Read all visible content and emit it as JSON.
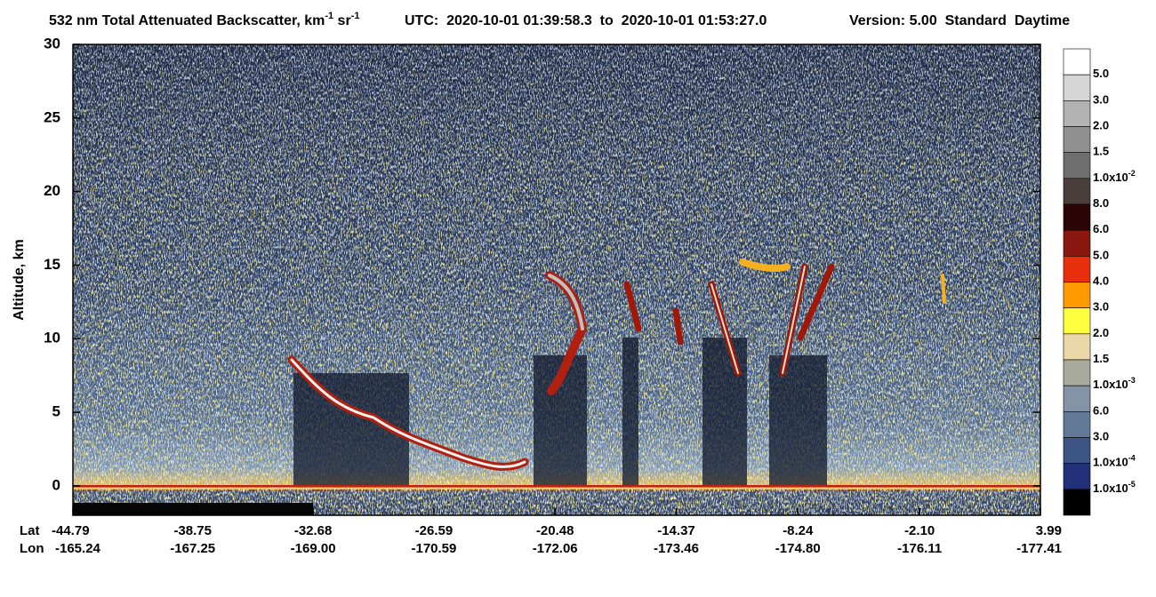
{
  "chart_data": {
    "type": "curtain",
    "title": {
      "quantity": "532 nm Total Attenuated Backscatter, km",
      "unit_exp_1": "-1",
      "unit_2": " sr",
      "unit_exp_2": "-1",
      "utc": "UTC:  2020-10-01 01:39:58.3  to  2020-10-01 01:53:27.0",
      "version": "Version: 5.00  Standard  Daytime"
    },
    "y_label": "Altitude, km",
    "ylim": [
      -2,
      30
    ],
    "yticks": [
      0,
      5,
      10,
      15,
      20,
      25,
      30
    ],
    "x_row_labels": [
      "Lat",
      "Lon"
    ],
    "xlim": [
      -44.79,
      3.99
    ],
    "xticks": [
      -44.79,
      -38.75,
      -32.68,
      -26.59,
      -20.48,
      -14.37,
      -8.24,
      {
        "value": -2.1,
        "label": "-2.10"
      },
      3.99
    ],
    "lon_labels": [
      "-165.24",
      "-167.25",
      "-169.00",
      "-170.59",
      "-172.06",
      "-173.46",
      "-174.80",
      "-176.11",
      "-177.41"
    ],
    "colorbar": {
      "colors": [
        "#ffffff",
        "#d6d6d6",
        "#b2b2b2",
        "#909090",
        "#6e6e6e",
        "#4a3e3c",
        "#2c0606",
        "#8a1810",
        "#e8300c",
        "#ff9a00",
        "#ffff40",
        "#ead8a8",
        "#a8aa9c",
        "#8494a6",
        "#627a98",
        "#3c5484",
        "#22307a",
        "#000000"
      ],
      "labels": [
        {
          "label": "5.0"
        },
        {
          "label": "3.0"
        },
        {
          "label": "2.0"
        },
        {
          "label": "1.5"
        },
        {
          "label": "1.0x10",
          "sup": "-2"
        },
        {
          "label": "8.0"
        },
        {
          "label": "6.0"
        },
        {
          "label": "5.0"
        },
        {
          "label": "4.0"
        },
        {
          "label": "3.0"
        },
        {
          "label": "2.0"
        },
        {
          "label": "1.5"
        },
        {
          "label": "1.0x10",
          "sup": "-3"
        },
        {
          "label": "6.0"
        },
        {
          "label": "3.0"
        },
        {
          "label": "1.0x10",
          "sup": "-4"
        },
        {
          "label": "1.0x10",
          "sup": "-5"
        }
      ]
    }
  }
}
